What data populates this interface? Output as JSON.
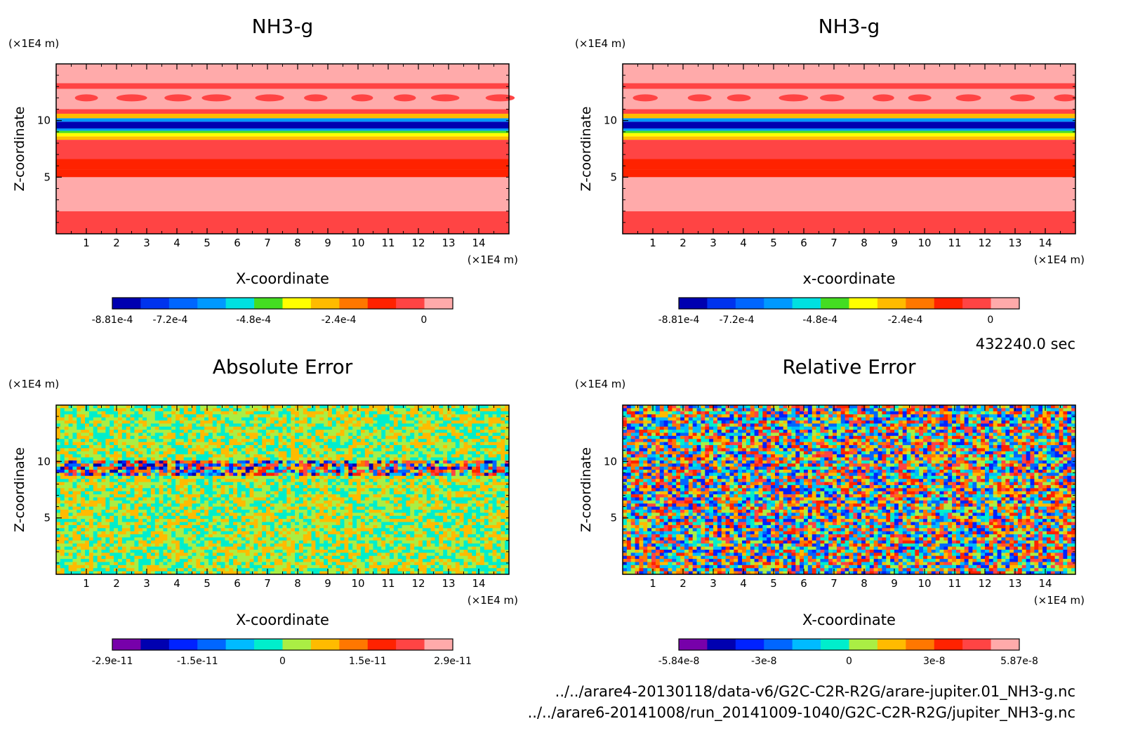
{
  "time_label": "432240.0 sec",
  "file_paths": [
    "../../arare4-20130118/data-v6/G2C-C2R-R2G/arare-jupiter.01_NH3-g.nc",
    "../../arare6-20141008/run_20141009-1040/G2C-C2R-R2G/jupiter_NH3-g.nc"
  ],
  "colors": {
    "pos_scale": [
      "#0000b0",
      "#0033ee",
      "#0066ff",
      "#0099ff",
      "#00e0e0",
      "#44dd22",
      "#ffff00",
      "#ffbb00",
      "#ff7700",
      "#ff2200",
      "#ff4444",
      "#ffaaaa"
    ],
    "err_scale": [
      "#7700aa",
      "#0000b0",
      "#0022ff",
      "#0066ff",
      "#00bbff",
      "#00eecc",
      "#aaee44",
      "#ffbb00",
      "#ff7700",
      "#ff2200",
      "#ff4444",
      "#ffaaaa"
    ]
  },
  "chart_data": [
    {
      "type": "heatmap",
      "title": "NH3-g",
      "xlabel": "X-coordinate",
      "ylabel": "Z-coordinate",
      "x_unit": "(×1E4 m)",
      "y_unit": "(×1E4 m)",
      "xlim": [
        0,
        15
      ],
      "ylim": [
        0,
        15
      ],
      "xticks": [
        "1",
        "2",
        "3",
        "4",
        "5",
        "6",
        "7",
        "8",
        "9",
        "10",
        "11",
        "12",
        "13",
        "14"
      ],
      "yticks": [
        "5",
        "10"
      ],
      "colorbar": {
        "labels": [
          "-8.81e-4",
          "-7.2e-4",
          "-4.8e-4",
          "-2.4e-4",
          "0"
        ],
        "range": [
          -0.000881,
          0
        ]
      },
      "bands": [
        {
          "z": [
            0,
            2
          ],
          "value": -0.0001
        },
        {
          "z": [
            2,
            5
          ],
          "value": 0
        },
        {
          "z": [
            5,
            5.7
          ],
          "value": -0.00022
        },
        {
          "z": [
            5.7,
            6.6
          ],
          "value": -0.00016
        },
        {
          "z": [
            6.6,
            8.3
          ],
          "value": -0.00012
        },
        {
          "z": [
            8.3,
            8.6
          ],
          "value": -0.0003
        },
        {
          "z": [
            8.6,
            8.9
          ],
          "value": -0.0004
        },
        {
          "z": [
            8.9,
            9.1
          ],
          "value": -0.0005
        },
        {
          "z": [
            9.1,
            9.3
          ],
          "value": -0.0006
        },
        {
          "z": [
            9.3,
            9.9
          ],
          "value": -0.00085
        },
        {
          "z": [
            9.9,
            10.2
          ],
          "value": -0.00065
        },
        {
          "z": [
            10.2,
            10.6
          ],
          "value": -0.0003
        },
        {
          "z": [
            10.6,
            11
          ],
          "value": -0.00012
        },
        {
          "z": [
            11,
            12.8
          ],
          "value": 0
        },
        {
          "z": [
            12.8,
            13.3
          ],
          "value": -0.0001
        },
        {
          "z": [
            13.3,
            15
          ],
          "value": 0
        }
      ]
    },
    {
      "type": "heatmap",
      "title": "NH3-g",
      "xlabel": "x-coordinate",
      "ylabel": "Z-coordinate",
      "x_unit": "(×1E4 m)",
      "y_unit": "(×1E4 m)",
      "xlim": [
        0,
        15
      ],
      "ylim": [
        0,
        15
      ],
      "xticks": [
        "1",
        "2",
        "3",
        "4",
        "5",
        "6",
        "7",
        "8",
        "9",
        "10",
        "11",
        "12",
        "13",
        "14"
      ],
      "yticks": [
        "5",
        "10"
      ],
      "colorbar": {
        "labels": [
          "-8.81e-4",
          "-7.2e-4",
          "-4.8e-4",
          "-2.4e-4",
          "0"
        ],
        "range": [
          -0.000881,
          0
        ]
      },
      "bands": [
        {
          "z": [
            0,
            2
          ],
          "value": -0.0001
        },
        {
          "z": [
            2,
            5
          ],
          "value": 0
        },
        {
          "z": [
            5,
            5.7
          ],
          "value": -0.00022
        },
        {
          "z": [
            5.7,
            6.6
          ],
          "value": -0.00016
        },
        {
          "z": [
            6.6,
            8.3
          ],
          "value": -0.00012
        },
        {
          "z": [
            8.3,
            8.6
          ],
          "value": -0.0003
        },
        {
          "z": [
            8.6,
            8.9
          ],
          "value": -0.0004
        },
        {
          "z": [
            8.9,
            9.1
          ],
          "value": -0.0005
        },
        {
          "z": [
            9.1,
            9.3
          ],
          "value": -0.0006
        },
        {
          "z": [
            9.3,
            9.9
          ],
          "value": -0.00085
        },
        {
          "z": [
            9.9,
            10.2
          ],
          "value": -0.00065
        },
        {
          "z": [
            10.2,
            10.6
          ],
          "value": -0.0003
        },
        {
          "z": [
            10.6,
            11
          ],
          "value": -0.00012
        },
        {
          "z": [
            11,
            12.8
          ],
          "value": 0
        },
        {
          "z": [
            12.8,
            13.3
          ],
          "value": -0.0001
        },
        {
          "z": [
            13.3,
            15
          ],
          "value": 0
        }
      ]
    },
    {
      "type": "heatmap",
      "title": "Absolute Error",
      "xlabel": "X-coordinate",
      "ylabel": "Z-coordinate",
      "x_unit": "(×1E4 m)",
      "y_unit": "(×1E4 m)",
      "xlim": [
        0,
        15
      ],
      "ylim": [
        0,
        15
      ],
      "xticks": [
        "1",
        "2",
        "3",
        "4",
        "5",
        "6",
        "7",
        "8",
        "9",
        "10",
        "11",
        "12",
        "13",
        "14"
      ],
      "yticks": [
        "5",
        "10"
      ],
      "colorbar": {
        "labels": [
          "-2.9e-11",
          "-1.5e-11",
          "0",
          "1.5e-11",
          "2.9e-11"
        ],
        "range": [
          -2.9e-11,
          2.9e-11
        ]
      },
      "pattern": "noise",
      "noise_low": [
        5,
        7
      ],
      "noise_band": {
        "z": [
          8.8,
          10.2
        ],
        "low": 1,
        "high": 10
      }
    },
    {
      "type": "heatmap",
      "title": "Relative Error",
      "xlabel": "X-coordinate",
      "ylabel": "Z-coordinate",
      "x_unit": "(×1E4 m)",
      "y_unit": "(×1E4 m)",
      "xlim": [
        0,
        15
      ],
      "ylim": [
        0,
        15
      ],
      "xticks": [
        "1",
        "2",
        "3",
        "4",
        "5",
        "6",
        "7",
        "8",
        "9",
        "10",
        "11",
        "12",
        "13",
        "14"
      ],
      "yticks": [
        "5",
        "10"
      ],
      "colorbar": {
        "labels": [
          "-5.84e-8",
          "-3e-8",
          "0",
          "3e-8",
          "5.87e-8"
        ],
        "range": [
          -5.84e-08,
          5.87e-08
        ]
      },
      "pattern": "noise",
      "noise_low": [
        2,
        10
      ]
    }
  ]
}
